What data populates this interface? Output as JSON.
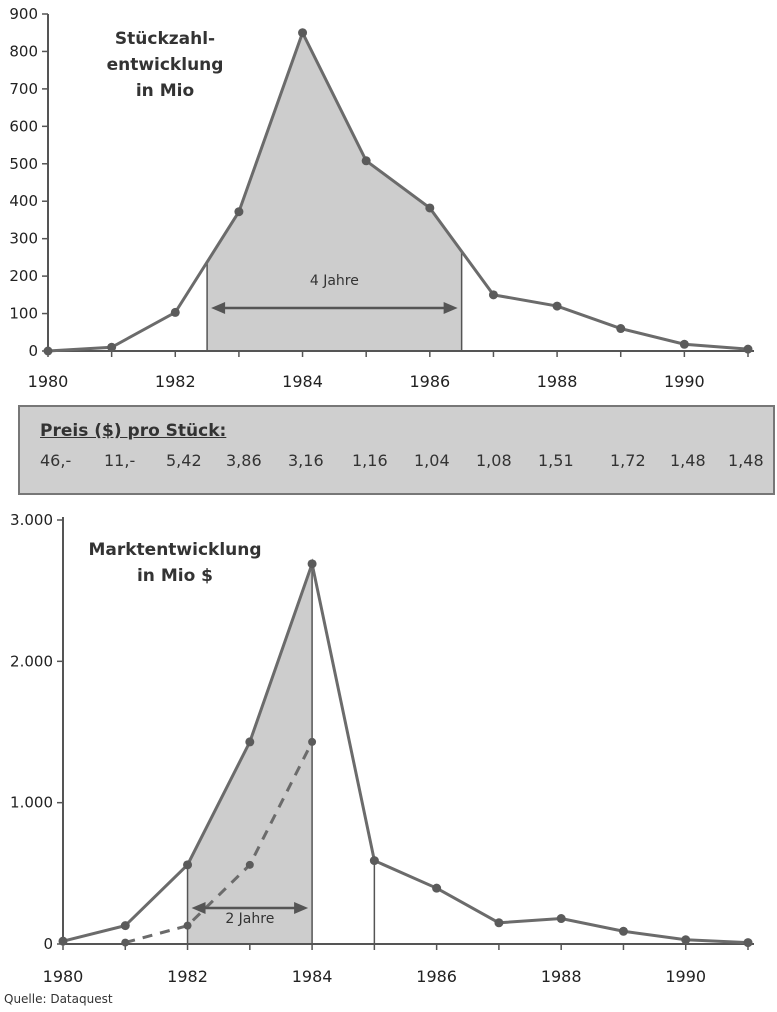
{
  "chart_data": [
    {
      "type": "area",
      "title": "Stückzahl-",
      "title2": "entwicklung",
      "title3": "in Mio",
      "x": [
        1980,
        1981,
        1982,
        1983,
        1984,
        1985,
        1986,
        1987,
        1988,
        1989,
        1990,
        1991
      ],
      "series": [
        {
          "values": [
            0,
            10,
            103,
            372,
            850,
            508,
            382,
            150,
            120,
            60,
            18,
            5
          ]
        }
      ],
      "xlim": [
        1980,
        1991
      ],
      "ylim": [
        0,
        900
      ],
      "yticks": [
        "0",
        "100",
        "200",
        "300",
        "400",
        "500",
        "600",
        "700",
        "800",
        "900"
      ],
      "xtick_labels": [
        "1980",
        "1982",
        "1984",
        "1986",
        "1988",
        "1990"
      ],
      "shaded_span": {
        "from": 1982.5,
        "to": 1986.5,
        "label": "4 Jahre"
      },
      "grid": false
    },
    {
      "type": "area",
      "title": "Marktentwicklung",
      "title2": "in Mio $",
      "x": [
        1980,
        1981,
        1982,
        1983,
        1984,
        1985,
        1986,
        1987,
        1988,
        1989,
        1990,
        1991
      ],
      "series": [
        {
          "values": [
            20,
            130,
            560,
            1430,
            2690,
            590,
            395,
            150,
            180,
            90,
            30,
            10
          ]
        },
        {
          "style": "dashed",
          "x": [
            1981,
            1982,
            1983,
            1984
          ],
          "values": [
            10,
            130,
            560,
            1430
          ]
        }
      ],
      "xlim": [
        1980,
        1991
      ],
      "ylim": [
        0,
        3000
      ],
      "yticks": [
        "0",
        "1.000",
        "2.000",
        "3.000"
      ],
      "xtick_labels": [
        "1980",
        "1982",
        "1984",
        "1986",
        "1988",
        "1990"
      ],
      "shaded_span": {
        "from": 1982,
        "to": 1984,
        "label": "2 Jahre"
      },
      "grid": false
    }
  ],
  "price_box": {
    "title": "Preis ($) pro Stück:",
    "values": [
      "46,-",
      "11,-",
      "5,42",
      "3,86",
      "3,16",
      "1,16",
      "1,04",
      "1,08",
      "1,51",
      "1,72",
      "1,48",
      "1,48"
    ]
  },
  "source": "Quelle: Dataquest",
  "colors": {
    "line": "#6b6b6b",
    "area": "#cdcdcd",
    "box": "#cfcfcf"
  }
}
